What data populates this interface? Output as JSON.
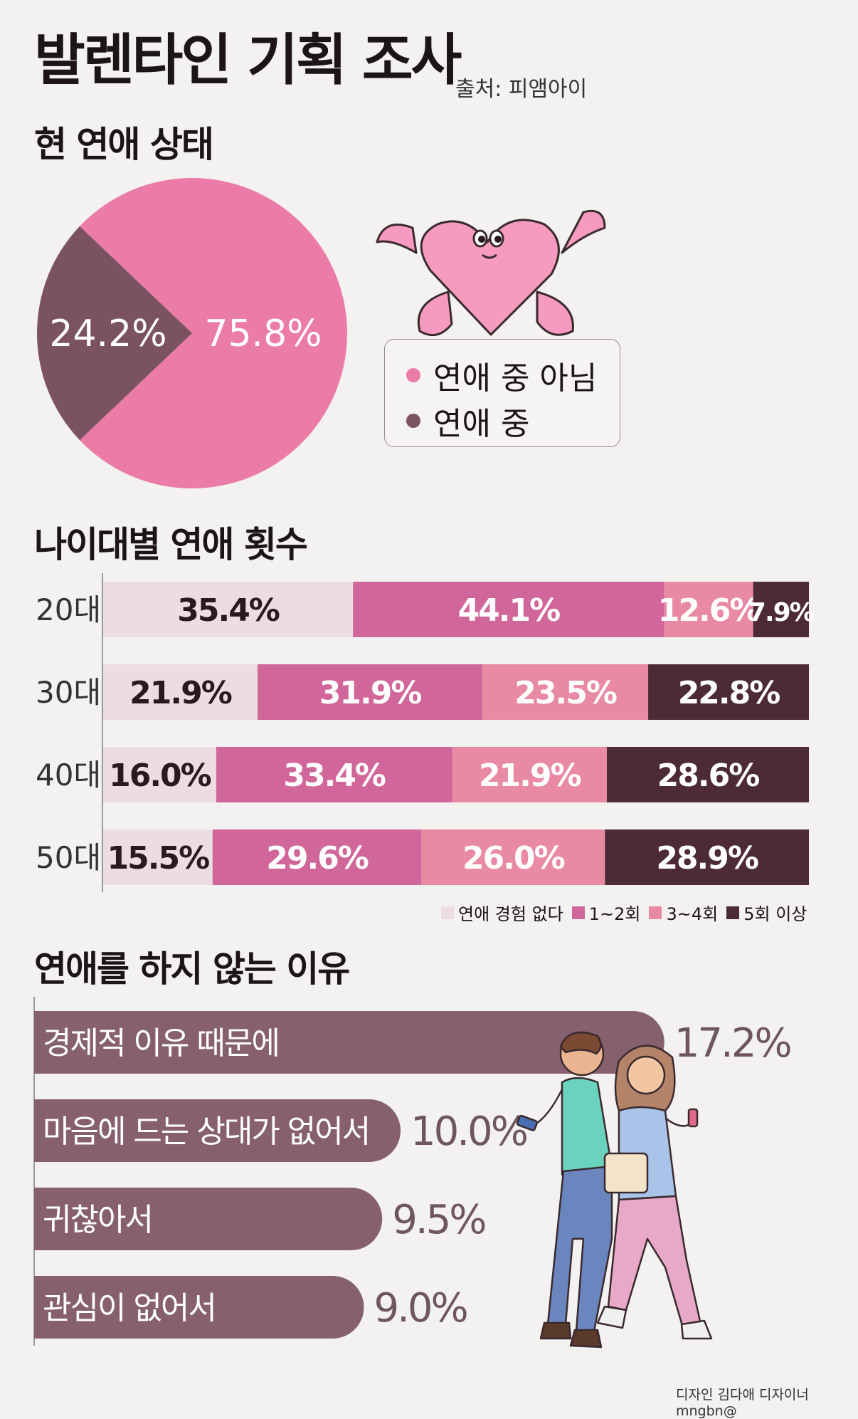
{
  "header": {
    "title": "발렌타인 기획 조사",
    "source": "출처: 피앰아이"
  },
  "sections": {
    "status_title": "현 연애 상태",
    "count_title": "나이대별 연애 횟수",
    "reason_title": "연애를 하지 않는 이유"
  },
  "pie_legend": {
    "not_dating": "연애 중 아님",
    "dating": "연애 중"
  },
  "stack_legend": [
    "연애 경험 없다",
    "1~2회",
    "3~4회",
    "5회 이상"
  ],
  "credit": "디자인 김다애 디자이너 mngbn@",
  "colors": {
    "pie_not_dating": "#eb7ca8",
    "pie_dating": "#7a5260",
    "seg0": "#ebdde2",
    "seg1": "#d06699",
    "seg2": "#e98aa5",
    "seg3": "#4d2a38",
    "reason_bar": "#86606f",
    "heart": "#f69ac0"
  },
  "chart_data": [
    {
      "type": "pie",
      "title": "현 연애 상태",
      "slices": [
        {
          "name": "연애 중 아님",
          "value": 75.8,
          "label": "75.8%"
        },
        {
          "name": "연애 중",
          "value": 24.2,
          "label": "24.2%"
        }
      ]
    },
    {
      "type": "bar",
      "title": "나이대별 연애 횟수",
      "orientation": "horizontal-stacked",
      "categories": [
        "20대",
        "30대",
        "40대",
        "50대"
      ],
      "series": [
        {
          "name": "연애 경험 없다",
          "values": [
            35.4,
            21.9,
            16.0,
            15.5
          ],
          "labels": [
            "35.4%",
            "21.9%",
            "16.0%",
            "15.5%"
          ]
        },
        {
          "name": "1~2회",
          "values": [
            44.1,
            31.9,
            33.4,
            29.6
          ],
          "labels": [
            "44.1%",
            "31.9%",
            "33.4%",
            "29.6%"
          ]
        },
        {
          "name": "3~4회",
          "values": [
            12.6,
            23.5,
            21.9,
            26.0
          ],
          "labels": [
            "12.6%",
            "23.5%",
            "21.9%",
            "26.0%"
          ]
        },
        {
          "name": "5회 이상",
          "values": [
            7.9,
            22.8,
            28.6,
            28.9
          ],
          "labels": [
            "7.9%",
            "22.8%",
            "28.6%",
            "28.9%"
          ]
        }
      ]
    },
    {
      "type": "bar",
      "title": "연애를 하지 않는 이유",
      "orientation": "horizontal",
      "categories": [
        "경제적 이유 때문에",
        "마음에 드는 상대가 없어서",
        "귀찮아서",
        "관심이 없어서"
      ],
      "values": [
        17.2,
        10.0,
        9.5,
        9.0
      ],
      "labels": [
        "17.2%",
        "10.0%",
        "9.5%",
        "9.0%"
      ]
    }
  ]
}
